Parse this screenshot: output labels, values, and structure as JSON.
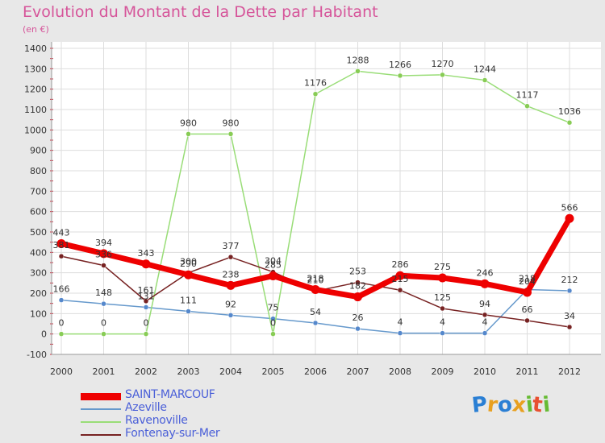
{
  "chart_data": {
    "type": "line",
    "title": "Evolution du Montant de la Dette par Habitant",
    "subtitle": "(en €)",
    "x": [
      "2000",
      "2001",
      "2002",
      "2003",
      "2004",
      "2005",
      "2006",
      "2007",
      "2008",
      "2009",
      "2010",
      "2011",
      "2012"
    ],
    "ylim": [
      -100,
      1400
    ],
    "yticks": [
      -100,
      0,
      100,
      200,
      300,
      400,
      500,
      600,
      700,
      800,
      900,
      1000,
      1100,
      1200,
      1300,
      1400
    ],
    "grid": true,
    "legend_placement": "bottom-left",
    "series": [
      {
        "name": "SAINT-MARCOUF",
        "color": "#ee0000",
        "values": [
          443,
          394,
          343,
          290,
          238,
          285,
          218,
          182,
          286,
          275,
          246,
          204,
          566
        ]
      },
      {
        "name": "Azeville",
        "color": "#6699cc",
        "values": [
          166,
          148,
          131,
          111,
          92,
          75,
          54,
          26,
          4,
          4,
          4,
          218,
          212
        ]
      },
      {
        "name": "Ravenoville",
        "color": "#99dd77",
        "values": [
          0,
          0,
          0,
          980,
          980,
          0,
          1176,
          1288,
          1266,
          1270,
          1244,
          1117,
          1036
        ]
      },
      {
        "name": "Fontenay-sur-Mer",
        "color": "#772222",
        "values": [
          381,
          336,
          161,
          300,
          377,
          304,
          210,
          253,
          215,
          125,
          94,
          66,
          34
        ]
      }
    ]
  },
  "logo": {
    "letters": [
      "P",
      "r",
      "o",
      "x",
      "i",
      "t",
      "i"
    ],
    "colors": [
      "#2a7fd4",
      "#e8a020",
      "#2a7fd4",
      "#e8a020",
      "#66bb33",
      "#e85030",
      "#66bb33"
    ]
  }
}
